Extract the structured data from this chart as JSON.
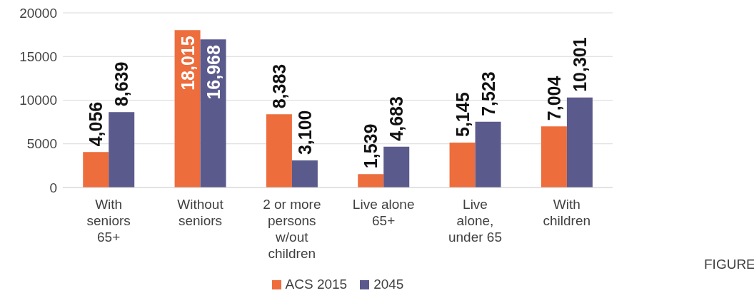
{
  "chart_data": {
    "type": "bar",
    "categories": [
      "With seniors 65+",
      "Without seniors",
      "2 or more persons w/out children",
      "Live alone 65+",
      "Live alone, under 65",
      "With children"
    ],
    "series": [
      {
        "name": "ACS 2015",
        "color": "#ed6d3d",
        "values": [
          4056,
          18015,
          8383,
          1539,
          5145,
          7004
        ],
        "value_labels": [
          "4,056",
          "18,015",
          "8,383",
          "1,539",
          "5,145",
          "7,004"
        ]
      },
      {
        "name": "2045",
        "color": "#5b5a8c",
        "values": [
          8639,
          16968,
          3100,
          4683,
          7523,
          10301
        ],
        "value_labels": [
          "8,639",
          "16,968",
          "3,100",
          "4,683",
          "7,523",
          "10,301"
        ]
      }
    ],
    "ylim": [
      0,
      20000
    ],
    "yticks": [
      0,
      5000,
      10000,
      15000,
      20000
    ],
    "grid": "y",
    "legend": "bottom",
    "annotations": [
      "FIGURE"
    ]
  }
}
